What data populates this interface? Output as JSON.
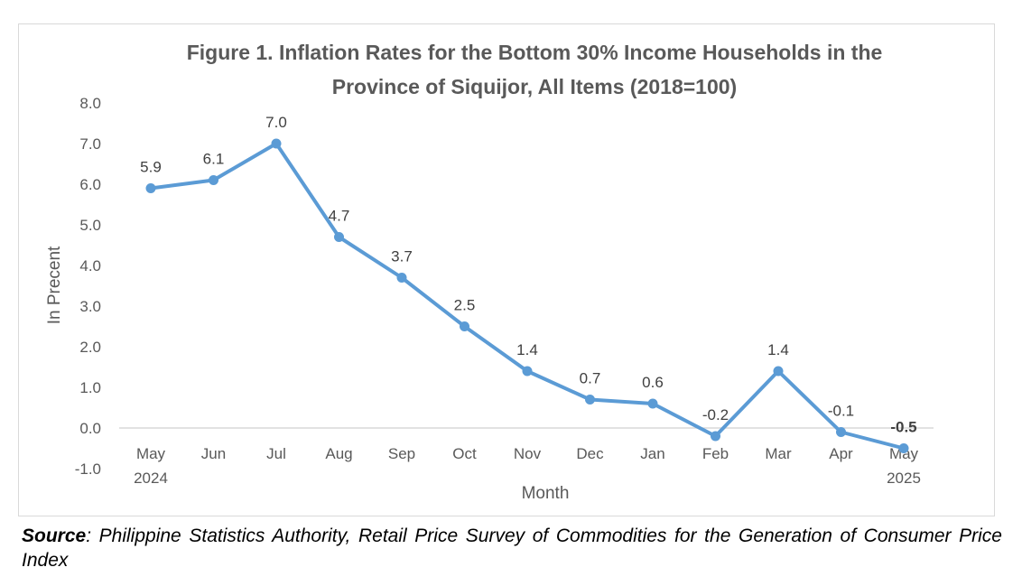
{
  "chart_data": {
    "type": "line",
    "title_line1": "Figure 1. Inflation Rates for the Bottom 30% Income Households in the",
    "title_line2": "Province of Siquijor,  All Items (2018=100)",
    "xlabel": "Month",
    "ylabel": "In Precent",
    "ylim": [
      -1.0,
      8.0
    ],
    "yticks": [
      "8.0",
      "7.0",
      "6.0",
      "5.0",
      "4.0",
      "3.0",
      "2.0",
      "1.0",
      "0.0",
      "-1.0"
    ],
    "ytick_values": [
      8,
      7,
      6,
      5,
      4,
      3,
      2,
      1,
      0,
      -1
    ],
    "categories": [
      "May",
      "Jun",
      "Jul",
      "Aug",
      "Sep",
      "Oct",
      "Nov",
      "Dec",
      "Jan",
      "Feb",
      "Mar",
      "Apr",
      "May"
    ],
    "category_sublabels": [
      "2024",
      "",
      "",
      "",
      "",
      "",
      "",
      "",
      "",
      "",
      "",
      "",
      "2025"
    ],
    "values": [
      5.9,
      6.1,
      7.0,
      4.7,
      3.7,
      2.5,
      1.4,
      0.7,
      0.6,
      -0.2,
      1.4,
      -0.1,
      -0.5
    ],
    "data_labels": [
      "5.9",
      "6.1",
      "7.0",
      "4.7",
      "3.7",
      "2.5",
      "1.4",
      "0.7",
      "0.6",
      "-0.2",
      "1.4",
      "-0.1",
      "-0.5"
    ],
    "line_color": "#5b9bd5",
    "grid": false
  },
  "source": {
    "label": "Source",
    "text": ": Philippine Statistics Authority, Retail Price Survey of Commodities for the Generation of Consumer Price Index"
  }
}
